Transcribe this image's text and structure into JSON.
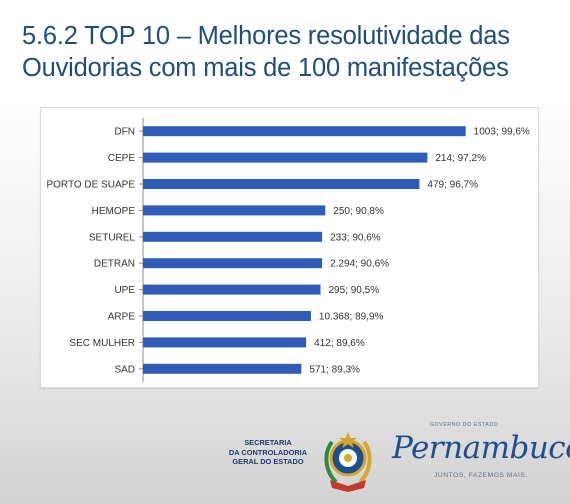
{
  "slide": {
    "title_line1": "5.6.2 TOP 10 – Melhores resolutividade das",
    "title_line2": "Ouvidorias com mais de 100 manifestações"
  },
  "chart_data": {
    "type": "bar",
    "orientation": "horizontal",
    "categories": [
      "DFN",
      "CEPE",
      "PORTO DE SUAPE",
      "HEMOPE",
      "SETUREL",
      "DETRAN",
      "UPE",
      "ARPE",
      "SEC MULHER",
      "SAD"
    ],
    "values": [
      99.6,
      97.2,
      96.7,
      90.8,
      90.6,
      90.6,
      90.5,
      89.9,
      89.6,
      89.3
    ],
    "data_labels": [
      "1003; 99,6%",
      "214; 97,2%",
      "479; 96,7%",
      "250; 90,8%",
      "233; 90,6%",
      "2.294; 90,6%",
      "295; 90,5%",
      "10.368; 89,9%",
      "412; 89,6%",
      "571; 89,3%"
    ],
    "manifestacoes": [
      1003,
      214,
      479,
      250,
      233,
      2294,
      295,
      10368,
      412,
      571
    ],
    "xlim": [
      0,
      110
    ],
    "title": "",
    "xlabel": "",
    "ylabel": "",
    "grid": false,
    "legend": "none",
    "bar_color": "#2f5cb8"
  },
  "footer": {
    "sec_line1": "SECRETARIA",
    "sec_line2": "DA CONTROLADORIA",
    "sec_line3": "GERAL DO ESTADO",
    "gov_top": "GOVERNO DO ESTADO",
    "gov_name": "Pernambuco",
    "gov_slogan": "JUNTOS, FAZEMOS MAIS."
  },
  "colors": {
    "title": "#1f4e79",
    "crest_blue": "#1f4e8c",
    "crest_gold": "#d4a72c",
    "crest_green": "#2f8a3c"
  },
  "icons": {
    "crest": "pernambuco-coat-of-arms-icon"
  }
}
